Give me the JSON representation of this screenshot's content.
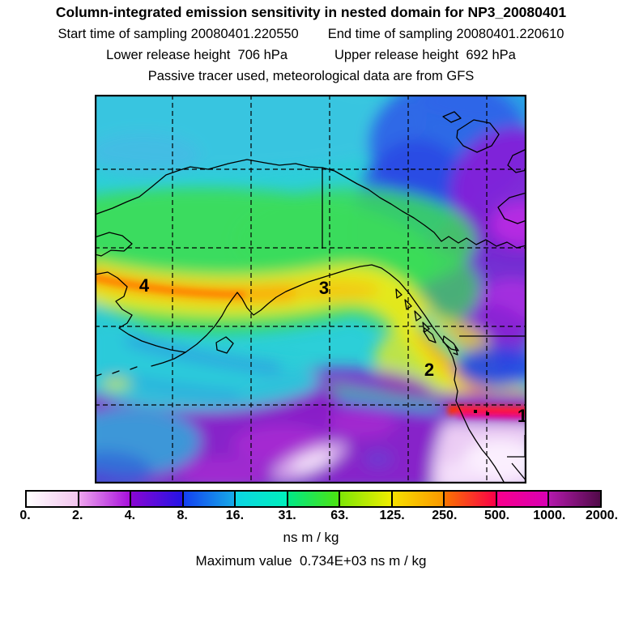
{
  "header": {
    "title": "Column-integrated emission sensitivity in nested domain for NP3_20080401",
    "start_time": "Start time of sampling 20080401.220550",
    "end_time": "End time of sampling 20080401.220610",
    "lower_release": "Lower release height  706 hPa",
    "upper_release": "Upper release height  692 hPa",
    "tracer_note": "Passive tracer used, meteorological data are from GFS"
  },
  "map": {
    "sites": [
      {
        "label": "4"
      },
      {
        "label": "3"
      },
      {
        "label": "2"
      },
      {
        "label": "1"
      }
    ]
  },
  "colorbar": {
    "units": "ns m / kg",
    "tick_labels": [
      "0.",
      "2.",
      "4.",
      "8.",
      "16.",
      "31.",
      "63.",
      "125.",
      "250.",
      "500.",
      "1000.",
      "2000."
    ],
    "segments": [
      {
        "from": "#ffffff",
        "to": "#f2c4ee"
      },
      {
        "from": "#eea4ee",
        "to": "#a810dc"
      },
      {
        "from": "#8a06d2",
        "to": "#2414e6"
      },
      {
        "from": "#1440f0",
        "to": "#16aae8"
      },
      {
        "from": "#0cd4e4",
        "to": "#00f0bc"
      },
      {
        "from": "#00e886",
        "to": "#4ce410"
      },
      {
        "from": "#7ee606",
        "to": "#f0ee00"
      },
      {
        "from": "#f8e000",
        "to": "#fa9800"
      },
      {
        "from": "#fa7400",
        "to": "#fa0048"
      },
      {
        "from": "#f8008c",
        "to": "#d800b4"
      },
      {
        "from": "#b41aac",
        "to": "#500a48"
      }
    ]
  },
  "footer": {
    "max_value": "Maximum value  0.734E+03 ns m / kg"
  },
  "chart_data": {
    "type": "heatmap",
    "title": "Column-integrated emission sensitivity in nested domain for NP3_20080401",
    "subtitle_lines": [
      "Start time of sampling 20080401.220550    End time of sampling 20080401.220610",
      "Lower release height  706 hPa    Upper release height  692 hPa",
      "Passive tracer used, meteorological data are from GFS"
    ],
    "colorbar_levels": [
      0,
      2,
      4,
      8,
      16,
      31,
      63,
      125,
      250,
      500,
      1000,
      2000
    ],
    "units": "ns m / kg",
    "maximum_value_text": "0.734E+03",
    "maximum_value": 734,
    "receptor_site_labels": [
      "1",
      "2",
      "3",
      "4"
    ],
    "legend_position": "bottom",
    "grid": "dashed latitude-longitude graticule, 5 vertical x 4 horizontal lines",
    "region": "North Pacific / Alaska / western North America nested domain",
    "field_description": "High sensitivity (yellow-orange-red arc) sweeps from the western edge across the Gulf of Alaska toward the British Columbia and US west coast, ending in a red-magenta maximum streak near site 1; low values (purple to white) over NE Canada and the subtropical Pacific."
  }
}
